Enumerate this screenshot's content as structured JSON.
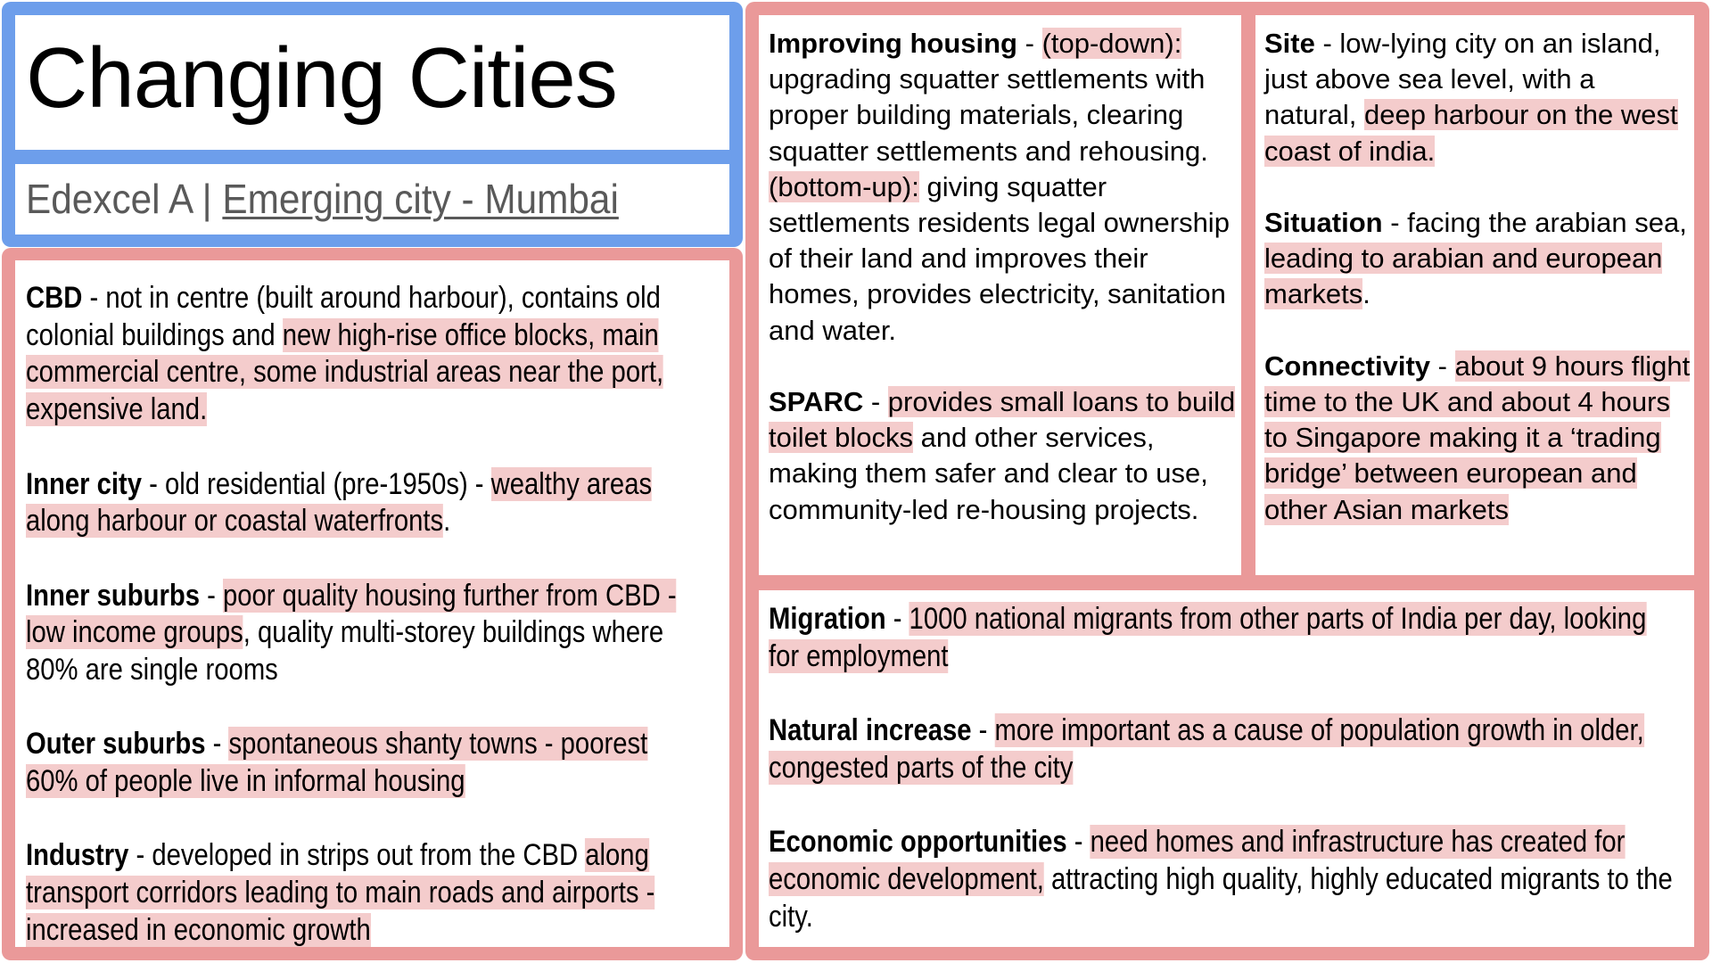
{
  "header": {
    "title": "Changing Cities",
    "subtitle_prefix": "Edexcel A | ",
    "subtitle_link": "Emerging city - Mumbai"
  },
  "colors": {
    "header_border": "#6d9eeb",
    "panel_border": "#ea9999",
    "highlight": "#f4cccc",
    "subtitle_text": "#595959"
  },
  "land_use": {
    "cbd": {
      "term": "CBD",
      "sep": " - ",
      "plain1": "not in centre (built around harbour), contains old colonial buildings and ",
      "hl1": "new high-rise office blocks, main commercial centre, some industrial areas near the port, expensive land."
    },
    "inner_city": {
      "term": "Inner city",
      "sep": " - ",
      "plain1": "old residential (pre-1950s) - ",
      "hl1": "wealthy areas along harbour or coastal waterfronts",
      "plain2": "."
    },
    "inner_suburbs": {
      "term": "Inner suburbs",
      "sep": " - ",
      "hl1": "poor quality housing further from CBD - low income groups",
      "plain2": ", quality multi-storey buildings where 80% are single rooms"
    },
    "outer_suburbs": {
      "term": "Outer suburbs",
      "sep": " - ",
      "hl1": "spontaneous shanty towns - poorest 60% of people live in informal housing"
    },
    "industry": {
      "term": "Industry",
      "sep": " - ",
      "plain1": "developed in strips out from the CBD ",
      "hl1": "along transport corridors leading to main roads and airports - increased in economic growth"
    }
  },
  "housing": {
    "improving": {
      "term": "Improving housing",
      "sep": " - ",
      "hl1": "(top-down):",
      "plain1": " upgrading squatter settlements with proper building materials, clearing squatter settlements and rehousing. ",
      "hl2": "(bottom-up):",
      "plain2": " giving squatter settlements residents legal ownership of their land and improves their homes, provides electricity, sanitation and water."
    },
    "sparc": {
      "term": "SPARC",
      "sep": " - ",
      "hl1": "provides small loans to build toilet blocks",
      "plain1": " and other services, making them safer and clear to use, community-led re-housing projects."
    }
  },
  "location": {
    "site": {
      "term": "Site",
      "sep": " - ",
      "plain1": "low-lying city on an island, just above sea level, with a natural, ",
      "hl1": "deep harbour on the west coast of india."
    },
    "situation": {
      "term": "Situation",
      "sep": " - ",
      "plain1": "facing the arabian sea, ",
      "hl1": "leading to arabian and european markets",
      "plain2": "."
    },
    "connectivity": {
      "term": "Connectivity",
      "sep": " - ",
      "hl1": "about 9 hours flight time to the UK and about 4 hours to Singapore making it a ‘trading bridge’ between european and other Asian markets"
    }
  },
  "growth": {
    "migration": {
      "term": "Migration",
      "sep": " - ",
      "hl1": "1000 national migrants from other parts of India per day, looking for employment"
    },
    "natural_increase": {
      "term": "Natural increase",
      "sep": " - ",
      "hl1": "more important as a cause of population growth in older, congested parts of the city"
    },
    "economic": {
      "term": "Economic opportunities",
      "sep": " - ",
      "hl1": "need homes and infrastructure has created for economic development,",
      "plain1": " attracting high quality, highly educated migrants to the city."
    }
  }
}
